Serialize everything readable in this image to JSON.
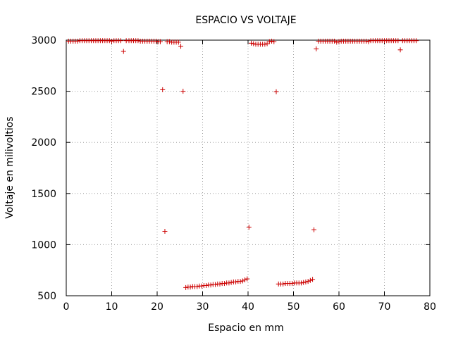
{
  "chart_data": {
    "type": "scatter",
    "title": "ESPACIO VS VOLTAJE",
    "xlabel": "Espacio en mm",
    "ylabel": "Voltaje en milivoltios",
    "xlim": [
      0,
      80
    ],
    "ylim": [
      500,
      3000
    ],
    "xticks": [
      "0",
      "10",
      "20",
      "30",
      "40",
      "50",
      "60",
      "70",
      "80"
    ],
    "yticks": [
      "500",
      "1000",
      "1500",
      "2000",
      "2500",
      "3000"
    ],
    "xtick_values": [
      0,
      10,
      20,
      30,
      40,
      50,
      60,
      70,
      80
    ],
    "ytick_values": [
      500,
      1000,
      1500,
      2000,
      2500,
      3000
    ],
    "grid": true,
    "marker": "+",
    "marker_color": "#cc0000",
    "series": [
      {
        "points": [
          [
            0.5,
            2990
          ],
          [
            1.0,
            2990
          ],
          [
            1.5,
            2990
          ],
          [
            2.0,
            2990
          ],
          [
            2.5,
            2990
          ],
          [
            3.0,
            2995
          ],
          [
            3.5,
            2995
          ],
          [
            4.0,
            2995
          ],
          [
            4.5,
            2995
          ],
          [
            5.0,
            2995
          ],
          [
            5.5,
            2995
          ],
          [
            6.0,
            2995
          ],
          [
            6.5,
            2995
          ],
          [
            7.0,
            2995
          ],
          [
            7.5,
            2995
          ],
          [
            8.0,
            2995
          ],
          [
            8.5,
            2995
          ],
          [
            9.0,
            2995
          ],
          [
            9.5,
            2995
          ],
          [
            10.0,
            2990
          ],
          [
            10.5,
            2995
          ],
          [
            11.0,
            2995
          ],
          [
            11.5,
            2995
          ],
          [
            12.0,
            2995
          ],
          [
            12.6,
            2890
          ],
          [
            13.2,
            2995
          ],
          [
            13.8,
            2995
          ],
          [
            14.3,
            2995
          ],
          [
            14.8,
            2995
          ],
          [
            15.3,
            2995
          ],
          [
            15.8,
            2995
          ],
          [
            16.3,
            2990
          ],
          [
            16.8,
            2990
          ],
          [
            17.3,
            2990
          ],
          [
            17.8,
            2990
          ],
          [
            18.3,
            2990
          ],
          [
            18.8,
            2990
          ],
          [
            19.3,
            2990
          ],
          [
            19.8,
            2990
          ],
          [
            20.3,
            2985
          ],
          [
            20.7,
            2985
          ],
          [
            21.2,
            2515
          ],
          [
            21.7,
            1130
          ],
          [
            22.2,
            2985
          ],
          [
            22.7,
            2985
          ],
          [
            23.2,
            2980
          ],
          [
            23.7,
            2980
          ],
          [
            24.2,
            2980
          ],
          [
            24.7,
            2980
          ],
          [
            25.2,
            2940
          ],
          [
            25.7,
            2500
          ],
          [
            26.3,
            580
          ],
          [
            26.8,
            585
          ],
          [
            27.3,
            585
          ],
          [
            27.8,
            590
          ],
          [
            28.3,
            590
          ],
          [
            28.8,
            590
          ],
          [
            29.3,
            595
          ],
          [
            29.8,
            595
          ],
          [
            30.3,
            600
          ],
          [
            30.8,
            600
          ],
          [
            31.3,
            605
          ],
          [
            31.8,
            605
          ],
          [
            32.3,
            610
          ],
          [
            32.8,
            610
          ],
          [
            33.3,
            615
          ],
          [
            33.8,
            615
          ],
          [
            34.3,
            620
          ],
          [
            34.8,
            620
          ],
          [
            35.3,
            625
          ],
          [
            35.8,
            625
          ],
          [
            36.3,
            630
          ],
          [
            36.8,
            635
          ],
          [
            37.3,
            635
          ],
          [
            37.8,
            640
          ],
          [
            38.3,
            640
          ],
          [
            38.8,
            645
          ],
          [
            39.3,
            655
          ],
          [
            39.8,
            665
          ],
          [
            40.2,
            1170
          ],
          [
            40.7,
            2970
          ],
          [
            41.2,
            2965
          ],
          [
            41.7,
            2960
          ],
          [
            42.2,
            2960
          ],
          [
            42.7,
            2960
          ],
          [
            43.2,
            2960
          ],
          [
            43.7,
            2960
          ],
          [
            44.2,
            2965
          ],
          [
            44.7,
            2985
          ],
          [
            45.2,
            2990
          ],
          [
            45.7,
            2985
          ],
          [
            46.2,
            2495
          ],
          [
            46.7,
            615
          ],
          [
            47.2,
            615
          ],
          [
            47.7,
            615
          ],
          [
            48.2,
            620
          ],
          [
            48.7,
            620
          ],
          [
            49.2,
            620
          ],
          [
            49.7,
            620
          ],
          [
            50.2,
            625
          ],
          [
            50.7,
            625
          ],
          [
            51.2,
            625
          ],
          [
            51.7,
            625
          ],
          [
            52.2,
            630
          ],
          [
            52.7,
            635
          ],
          [
            53.2,
            640
          ],
          [
            53.7,
            650
          ],
          [
            54.2,
            660
          ],
          [
            54.5,
            1145
          ],
          [
            55.0,
            2915
          ],
          [
            55.5,
            2990
          ],
          [
            56.0,
            2990
          ],
          [
            56.5,
            2990
          ],
          [
            57.0,
            2990
          ],
          [
            57.5,
            2990
          ],
          [
            58.0,
            2990
          ],
          [
            58.5,
            2990
          ],
          [
            59.0,
            2990
          ],
          [
            59.5,
            2980
          ],
          [
            60.0,
            2985
          ],
          [
            60.5,
            2990
          ],
          [
            61.0,
            2990
          ],
          [
            61.5,
            2990
          ],
          [
            62.0,
            2990
          ],
          [
            62.5,
            2990
          ],
          [
            63.0,
            2990
          ],
          [
            63.5,
            2990
          ],
          [
            64.0,
            2990
          ],
          [
            64.5,
            2990
          ],
          [
            65.0,
            2990
          ],
          [
            65.5,
            2990
          ],
          [
            66.0,
            2990
          ],
          [
            66.5,
            2985
          ],
          [
            67.0,
            2995
          ],
          [
            67.5,
            2995
          ],
          [
            68.0,
            2995
          ],
          [
            68.5,
            2995
          ],
          [
            69.0,
            2995
          ],
          [
            69.5,
            2995
          ],
          [
            70.0,
            2995
          ],
          [
            70.5,
            2995
          ],
          [
            71.0,
            2995
          ],
          [
            71.5,
            2995
          ],
          [
            72.0,
            2995
          ],
          [
            72.5,
            2995
          ],
          [
            73.0,
            2995
          ],
          [
            73.5,
            2905
          ],
          [
            74.0,
            2995
          ],
          [
            74.5,
            2995
          ],
          [
            75.0,
            2995
          ],
          [
            75.5,
            2995
          ],
          [
            76.0,
            2995
          ],
          [
            76.5,
            2995
          ],
          [
            77.0,
            2995
          ]
        ]
      }
    ]
  }
}
